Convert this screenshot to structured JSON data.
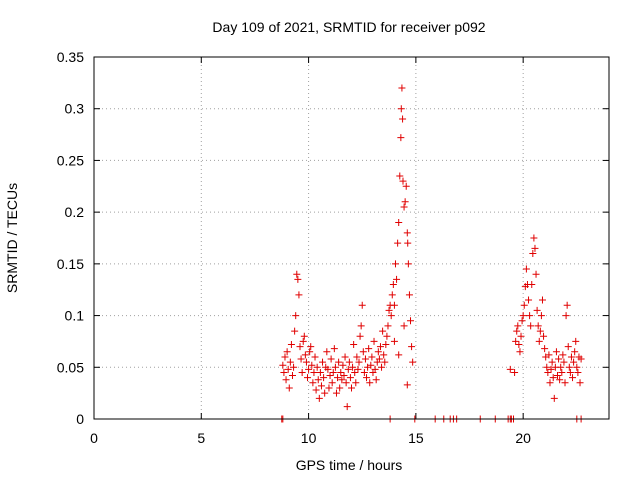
{
  "chart_data": {
    "type": "scatter",
    "title": "Day 109 of 2021, SRMTID for receiver p092",
    "xlabel": "GPS time / hours",
    "ylabel": "SRMTID / TECUs",
    "xlim": [
      0,
      24
    ],
    "ylim": [
      0,
      0.35
    ],
    "xticks": [
      0,
      5,
      10,
      15,
      20
    ],
    "xtick_labels": [
      "0",
      "5",
      "10",
      "15",
      "20"
    ],
    "yticks": [
      0,
      0.05,
      0.1,
      0.15,
      0.2,
      0.25,
      0.3,
      0.35
    ],
    "ytick_labels": [
      "0",
      "0.05",
      "0.1",
      "0.15",
      "0.2",
      "0.25",
      "0.3",
      "0.35"
    ],
    "grid": true,
    "marker": "+",
    "colors": {
      "series": "#e00000",
      "grid": "#a0a0a0",
      "axis": "#000000"
    },
    "series": [
      {
        "name": "SRMTID",
        "points": [
          [
            8.75,
            0.0
          ],
          [
            8.8,
            0.0
          ],
          [
            13.8,
            0.0
          ],
          [
            14.95,
            0.0
          ],
          [
            15.9,
            0.0
          ],
          [
            16.3,
            0.0
          ],
          [
            16.6,
            0.0
          ],
          [
            16.75,
            0.0
          ],
          [
            16.9,
            0.0
          ],
          [
            18.0,
            0.0
          ],
          [
            18.7,
            0.0
          ],
          [
            19.3,
            0.0
          ],
          [
            19.4,
            0.0
          ],
          [
            19.45,
            0.0
          ],
          [
            19.55,
            0.0
          ],
          [
            22.5,
            0.0
          ],
          [
            22.7,
            0.0
          ],
          [
            8.8,
            0.052
          ],
          [
            8.85,
            0.045
          ],
          [
            8.9,
            0.06
          ],
          [
            8.95,
            0.038
          ],
          [
            9.0,
            0.065
          ],
          [
            9.05,
            0.048
          ],
          [
            9.1,
            0.03
          ],
          [
            9.15,
            0.055
          ],
          [
            9.2,
            0.072
          ],
          [
            9.25,
            0.042
          ],
          [
            9.3,
            0.05
          ],
          [
            9.35,
            0.085
          ],
          [
            9.4,
            0.1
          ],
          [
            9.45,
            0.14
          ],
          [
            9.5,
            0.135
          ],
          [
            9.55,
            0.12
          ],
          [
            9.6,
            0.07
          ],
          [
            9.65,
            0.058
          ],
          [
            9.7,
            0.045
          ],
          [
            9.75,
            0.075
          ],
          [
            9.8,
            0.08
          ],
          [
            9.85,
            0.062
          ],
          [
            9.9,
            0.055
          ],
          [
            9.95,
            0.04
          ],
          [
            10.0,
            0.048
          ],
          [
            10.05,
            0.065
          ],
          [
            10.1,
            0.07
          ],
          [
            10.15,
            0.052
          ],
          [
            10.2,
            0.035
          ],
          [
            10.25,
            0.045
          ],
          [
            10.3,
            0.06
          ],
          [
            10.35,
            0.028
          ],
          [
            10.4,
            0.05
          ],
          [
            10.45,
            0.038
          ],
          [
            10.5,
            0.02
          ],
          [
            10.55,
            0.045
          ],
          [
            10.6,
            0.032
          ],
          [
            10.65,
            0.055
          ],
          [
            10.7,
            0.04
          ],
          [
            10.75,
            0.025
          ],
          [
            10.8,
            0.05
          ],
          [
            10.85,
            0.065
          ],
          [
            10.9,
            0.048
          ],
          [
            10.95,
            0.03
          ],
          [
            11.0,
            0.042
          ],
          [
            11.05,
            0.058
          ],
          [
            11.1,
            0.035
          ],
          [
            11.15,
            0.045
          ],
          [
            11.2,
            0.068
          ],
          [
            11.25,
            0.05
          ],
          [
            11.3,
            0.025
          ],
          [
            11.35,
            0.04
          ],
          [
            11.4,
            0.055
          ],
          [
            11.45,
            0.03
          ],
          [
            11.5,
            0.045
          ],
          [
            11.55,
            0.038
          ],
          [
            11.6,
            0.052
          ],
          [
            11.65,
            0.042
          ],
          [
            11.7,
            0.06
          ],
          [
            11.75,
            0.035
          ],
          [
            11.8,
            0.012
          ],
          [
            11.85,
            0.048
          ],
          [
            11.9,
            0.055
          ],
          [
            11.95,
            0.04
          ],
          [
            12.0,
            0.03
          ],
          [
            12.05,
            0.05
          ],
          [
            12.1,
            0.072
          ],
          [
            12.15,
            0.045
          ],
          [
            12.2,
            0.035
          ],
          [
            12.25,
            0.06
          ],
          [
            12.3,
            0.048
          ],
          [
            12.35,
            0.055
          ],
          [
            12.4,
            0.08
          ],
          [
            12.45,
            0.09
          ],
          [
            12.5,
            0.11
          ],
          [
            12.55,
            0.065
          ],
          [
            12.6,
            0.045
          ],
          [
            12.65,
            0.058
          ],
          [
            12.7,
            0.04
          ],
          [
            12.75,
            0.05
          ],
          [
            12.8,
            0.068
          ],
          [
            12.85,
            0.035
          ],
          [
            12.9,
            0.052
          ],
          [
            12.95,
            0.06
          ],
          [
            13.0,
            0.045
          ],
          [
            13.05,
            0.075
          ],
          [
            13.1,
            0.048
          ],
          [
            13.15,
            0.038
          ],
          [
            13.2,
            0.055
          ],
          [
            13.25,
            0.065
          ],
          [
            13.3,
            0.058
          ],
          [
            13.35,
            0.07
          ],
          [
            13.4,
            0.05
          ],
          [
            13.45,
            0.085
          ],
          [
            13.5,
            0.062
          ],
          [
            13.55,
            0.055
          ],
          [
            13.6,
            0.072
          ],
          [
            13.65,
            0.08
          ],
          [
            13.7,
            0.09
          ],
          [
            13.75,
            0.105
          ],
          [
            13.8,
            0.11
          ],
          [
            13.85,
            0.1
          ],
          [
            13.9,
            0.12
          ],
          [
            13.95,
            0.13
          ],
          [
            14.0,
            0.11
          ],
          [
            14.05,
            0.15
          ],
          [
            14.1,
            0.135
          ],
          [
            14.15,
            0.17
          ],
          [
            14.2,
            0.19
          ],
          [
            14.25,
            0.235
          ],
          [
            14.3,
            0.272
          ],
          [
            14.32,
            0.3
          ],
          [
            14.35,
            0.32
          ],
          [
            14.38,
            0.29
          ],
          [
            14.4,
            0.23
          ],
          [
            14.45,
            0.205
          ],
          [
            14.5,
            0.21
          ],
          [
            14.55,
            0.225
          ],
          [
            14.6,
            0.18
          ],
          [
            14.62,
            0.17
          ],
          [
            14.65,
            0.15
          ],
          [
            14.7,
            0.12
          ],
          [
            14.75,
            0.095
          ],
          [
            14.8,
            0.07
          ],
          [
            14.85,
            0.055
          ],
          [
            14.6,
            0.033
          ],
          [
            14.2,
            0.062
          ],
          [
            14.0,
            0.075
          ],
          [
            14.45,
            0.09
          ],
          [
            19.4,
            0.048
          ],
          [
            19.6,
            0.045
          ],
          [
            19.65,
            0.075
          ],
          [
            19.7,
            0.085
          ],
          [
            19.75,
            0.09
          ],
          [
            19.8,
            0.072
          ],
          [
            19.85,
            0.065
          ],
          [
            19.9,
            0.08
          ],
          [
            19.95,
            0.095
          ],
          [
            20.0,
            0.1
          ],
          [
            20.05,
            0.11
          ],
          [
            20.1,
            0.128
          ],
          [
            20.15,
            0.145
          ],
          [
            20.2,
            0.13
          ],
          [
            20.25,
            0.115
          ],
          [
            20.3,
            0.1
          ],
          [
            20.35,
            0.09
          ],
          [
            20.4,
            0.13
          ],
          [
            20.45,
            0.16
          ],
          [
            20.5,
            0.175
          ],
          [
            20.55,
            0.165
          ],
          [
            20.6,
            0.14
          ],
          [
            20.65,
            0.105
          ],
          [
            20.7,
            0.09
          ],
          [
            20.75,
            0.075
          ],
          [
            20.8,
            0.085
          ],
          [
            20.85,
            0.1
          ],
          [
            20.9,
            0.115
          ],
          [
            20.95,
            0.08
          ],
          [
            21.0,
            0.068
          ],
          [
            21.05,
            0.06
          ],
          [
            21.1,
            0.05
          ],
          [
            21.15,
            0.045
          ],
          [
            21.2,
            0.062
          ],
          [
            21.25,
            0.035
          ],
          [
            21.3,
            0.048
          ],
          [
            21.35,
            0.055
          ],
          [
            21.4,
            0.04
          ],
          [
            21.45,
            0.02
          ],
          [
            21.5,
            0.05
          ],
          [
            21.55,
            0.065
          ],
          [
            21.6,
            0.042
          ],
          [
            21.65,
            0.058
          ],
          [
            21.7,
            0.038
          ],
          [
            21.75,
            0.05
          ],
          [
            21.8,
            0.045
          ],
          [
            21.85,
            0.062
          ],
          [
            21.9,
            0.055
          ],
          [
            21.95,
            0.035
          ],
          [
            22.0,
            0.1
          ],
          [
            22.05,
            0.11
          ],
          [
            22.1,
            0.07
          ],
          [
            22.15,
            0.05
          ],
          [
            22.2,
            0.045
          ],
          [
            22.25,
            0.06
          ],
          [
            22.3,
            0.04
          ],
          [
            22.35,
            0.055
          ],
          [
            22.4,
            0.065
          ],
          [
            22.45,
            0.075
          ],
          [
            22.5,
            0.05
          ],
          [
            22.55,
            0.045
          ],
          [
            22.6,
            0.06
          ],
          [
            22.65,
            0.035
          ],
          [
            22.7,
            0.058
          ]
        ]
      }
    ]
  }
}
